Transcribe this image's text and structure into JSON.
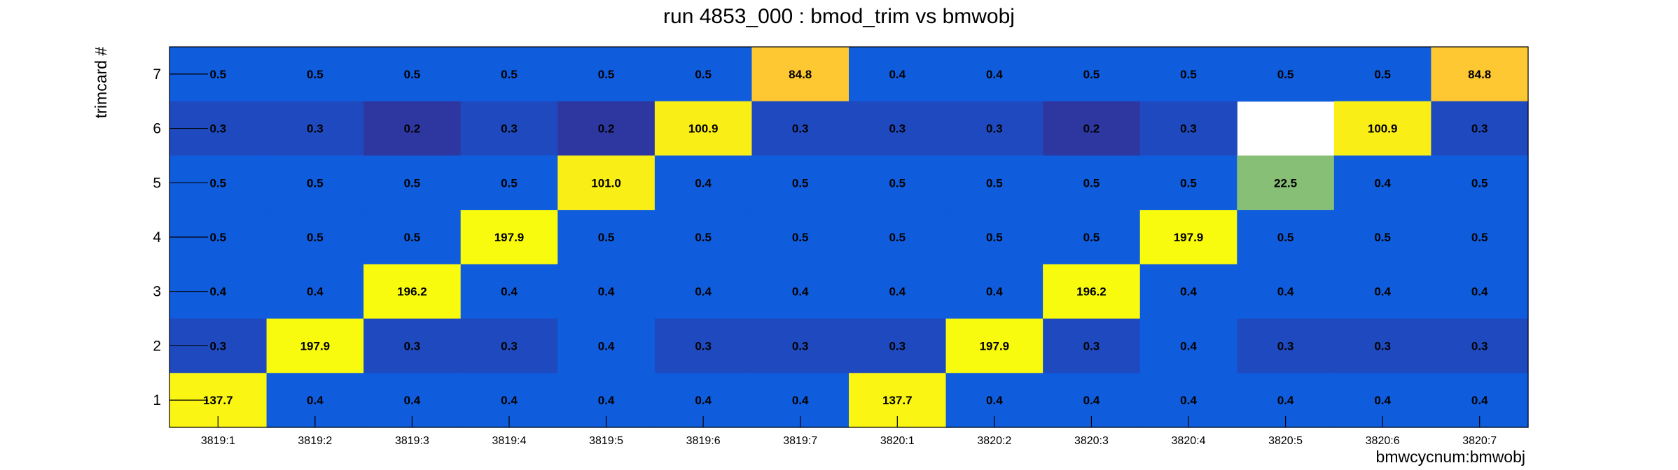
{
  "chart_data": {
    "type": "heatmap",
    "title": "run 4853_000 : bmod_trim vs bmwobj",
    "xlabel": "bmwcycnum:bmwobj",
    "ylabel": "trimcard #",
    "x_categories": [
      "3819:1",
      "3819:2",
      "3819:3",
      "3819:4",
      "3819:5",
      "3819:6",
      "3819:7",
      "3820:1",
      "3820:2",
      "3820:3",
      "3820:4",
      "3820:5",
      "3820:6",
      "3820:7"
    ],
    "y_categories": [
      "1",
      "2",
      "3",
      "4",
      "5",
      "6",
      "7"
    ],
    "rows": [
      {
        "y": "7",
        "values": [
          0.5,
          0.5,
          0.5,
          0.5,
          0.5,
          0.5,
          84.8,
          0.4,
          0.4,
          0.5,
          0.5,
          0.5,
          0.5,
          84.8
        ]
      },
      {
        "y": "6",
        "values": [
          0.3,
          0.3,
          0.2,
          0.3,
          0.2,
          100.9,
          0.3,
          0.3,
          0.3,
          0.2,
          0.3,
          null,
          100.9,
          0.3
        ]
      },
      {
        "y": "5",
        "values": [
          0.5,
          0.5,
          0.5,
          0.5,
          101.0,
          0.4,
          0.5,
          0.5,
          0.5,
          0.5,
          0.5,
          22.5,
          0.4,
          0.5
        ]
      },
      {
        "y": "4",
        "values": [
          0.5,
          0.5,
          0.5,
          197.9,
          0.5,
          0.5,
          0.5,
          0.5,
          0.5,
          0.5,
          197.9,
          0.5,
          0.5,
          0.5
        ]
      },
      {
        "y": "3",
        "values": [
          0.4,
          0.4,
          196.2,
          0.4,
          0.4,
          0.4,
          0.4,
          0.4,
          0.4,
          196.2,
          0.4,
          0.4,
          0.4,
          0.4
        ]
      },
      {
        "y": "2",
        "values": [
          0.3,
          197.9,
          0.3,
          0.3,
          0.4,
          0.3,
          0.3,
          0.3,
          197.9,
          0.3,
          0.4,
          0.3,
          0.3,
          0.3
        ]
      },
      {
        "y": "1",
        "values": [
          137.7,
          0.4,
          0.4,
          0.4,
          0.4,
          0.4,
          0.4,
          137.7,
          0.4,
          0.4,
          0.4,
          0.4,
          0.4,
          0.4
        ]
      }
    ],
    "value_format": "one decimal place",
    "color_scale": "ROOT kBird palette",
    "grid": false,
    "legend": "none"
  }
}
